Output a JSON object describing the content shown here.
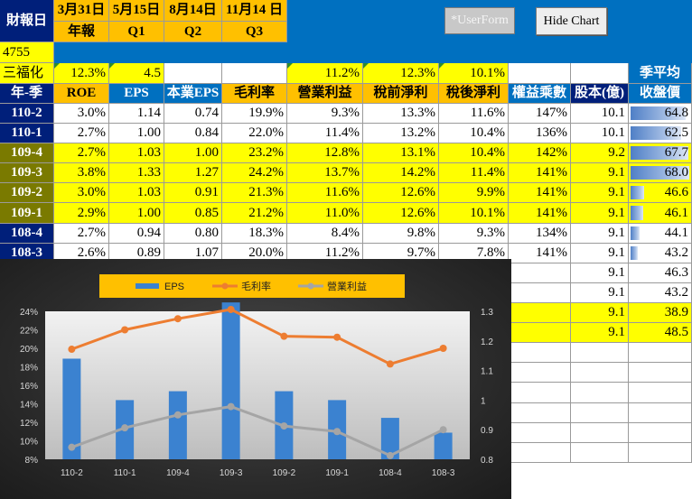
{
  "colors": {
    "navy": "#001f7a",
    "blue": "#0070c0",
    "yellow": "#ffff00",
    "orange": "#ffc000",
    "white": "#ffffff",
    "eps_bar": "#3b82d0",
    "gross_line": "#ed7d31",
    "op_line": "#a5a5a5",
    "tri": "#2e8b2e"
  },
  "header": {
    "label": "財報日",
    "dates": [
      {
        "date": "3月31日",
        "type": "年報"
      },
      {
        "date": "5月15日",
        "type": "Q1"
      },
      {
        "date": "8月14日",
        "type": "Q2"
      },
      {
        "date": "11月14 日",
        "type": "Q3"
      }
    ]
  },
  "buttons": {
    "userform": "*UserForm",
    "hide_chart": "Hide Chart"
  },
  "stock": {
    "code": "4755",
    "name": "三福化"
  },
  "summary": {
    "roe": "12.3%",
    "eps": "4.5",
    "op_margin": "11.2%",
    "pretax": "12.3%",
    "aftertax": "10.1%"
  },
  "avg_label": "季平均",
  "columns": [
    "年-季",
    "ROE",
    "EPS",
    "本業EPS",
    "毛利率",
    "營業利益",
    "稅前淨利",
    "稅後淨利",
    "權益乘數",
    "股本(億)",
    "收盤價"
  ],
  "rows": [
    {
      "q": "110-2",
      "roe": "3.0%",
      "eps": "1.14",
      "core": "0.74",
      "gross": "19.9%",
      "op": "9.3%",
      "pretax": "13.3%",
      "after": "11.6%",
      "lev": "147%",
      "cap": "10.1",
      "price": "64.8",
      "price_frac": 0.93,
      "color": "white"
    },
    {
      "q": "110-1",
      "roe": "2.7%",
      "eps": "1.00",
      "core": "0.84",
      "gross": "22.0%",
      "op": "11.4%",
      "pretax": "13.2%",
      "after": "10.4%",
      "lev": "136%",
      "cap": "10.1",
      "price": "62.5",
      "price_frac": 0.85,
      "color": "white"
    },
    {
      "q": "109-4",
      "roe": "2.7%",
      "eps": "1.03",
      "core": "1.00",
      "gross": "23.2%",
      "op": "12.8%",
      "pretax": "13.1%",
      "after": "10.4%",
      "lev": "142%",
      "cap": "9.2",
      "price": "67.7",
      "price_frac": 0.97,
      "color": "yellow"
    },
    {
      "q": "109-3",
      "roe": "3.8%",
      "eps": "1.33",
      "core": "1.27",
      "gross": "24.2%",
      "op": "13.7%",
      "pretax": "14.2%",
      "after": "11.4%",
      "lev": "141%",
      "cap": "9.1",
      "price": "68.0",
      "price_frac": 0.98,
      "color": "yellow"
    },
    {
      "q": "109-2",
      "roe": "3.0%",
      "eps": "1.03",
      "core": "0.91",
      "gross": "21.3%",
      "op": "11.6%",
      "pretax": "12.6%",
      "after": "9.9%",
      "lev": "141%",
      "cap": "9.1",
      "price": "46.6",
      "price_frac": 0.22,
      "color": "yellow"
    },
    {
      "q": "109-1",
      "roe": "2.9%",
      "eps": "1.00",
      "core": "0.85",
      "gross": "21.2%",
      "op": "11.0%",
      "pretax": "12.6%",
      "after": "10.1%",
      "lev": "141%",
      "cap": "9.1",
      "price": "46.1",
      "price_frac": 0.21,
      "color": "yellow"
    },
    {
      "q": "108-4",
      "roe": "2.7%",
      "eps": "0.94",
      "core": "0.80",
      "gross": "18.3%",
      "op": "8.4%",
      "pretax": "9.8%",
      "after": "9.3%",
      "lev": "134%",
      "cap": "9.1",
      "price": "44.1",
      "price_frac": 0.15,
      "color": "white"
    },
    {
      "q": "108-3",
      "roe": "2.6%",
      "eps": "0.89",
      "core": "1.07",
      "gross": "20.0%",
      "op": "11.2%",
      "pretax": "9.7%",
      "after": "7.8%",
      "lev": "141%",
      "cap": "9.1",
      "price": "43.2",
      "price_frac": 0.12,
      "color": "white"
    }
  ],
  "extra_rows": [
    {
      "cap": "9.1",
      "price": "46.3",
      "color": "white"
    },
    {
      "cap": "9.1",
      "price": "43.2",
      "color": "white"
    },
    {
      "cap": "9.1",
      "price": "38.9",
      "color": "yellow"
    },
    {
      "cap": "9.1",
      "price": "48.5",
      "color": "yellow"
    },
    {
      "cap": "",
      "price": "",
      "color": "white"
    },
    {
      "cap": "",
      "price": "",
      "color": "white"
    },
    {
      "cap": "",
      "price": "",
      "color": "white"
    },
    {
      "cap": "",
      "price": "",
      "color": "white"
    },
    {
      "cap": "",
      "price": "",
      "color": "white"
    },
    {
      "cap": "",
      "price": "",
      "color": "white"
    }
  ],
  "chart_data": {
    "type": "bar",
    "categories": [
      "110-2",
      "110-1",
      "109-4",
      "109-3",
      "109-2",
      "109-1",
      "108-4",
      "108-3"
    ],
    "series": [
      {
        "name": "EPS",
        "kind": "bar",
        "axis": "right",
        "values": [
          1.14,
          1.0,
          1.03,
          1.33,
          1.03,
          1.0,
          0.94,
          0.89
        ]
      },
      {
        "name": "毛利率",
        "kind": "line",
        "axis": "left",
        "values": [
          19.9,
          22.0,
          23.2,
          24.2,
          21.3,
          21.2,
          18.3,
          20.0
        ]
      },
      {
        "name": "營業利益",
        "kind": "line",
        "axis": "left",
        "values": [
          9.3,
          11.4,
          12.8,
          13.7,
          11.6,
          11.0,
          8.4,
          11.2
        ]
      }
    ],
    "y_left": {
      "min": 8,
      "max": 24,
      "ticks": [
        "8%",
        "10%",
        "12%",
        "14%",
        "16%",
        "18%",
        "20%",
        "22%",
        "24%"
      ],
      "tick_values": [
        8,
        10,
        12,
        14,
        16,
        18,
        20,
        22,
        24
      ]
    },
    "y_right": {
      "min": 0.8,
      "max": 1.3,
      "ticks": [
        "0.8",
        "0.9",
        "1",
        "1.1",
        "1.2",
        "1.3"
      ],
      "tick_values": [
        0.8,
        0.9,
        1.0,
        1.1,
        1.2,
        1.3
      ]
    },
    "legend_position": "top",
    "grid": false
  }
}
